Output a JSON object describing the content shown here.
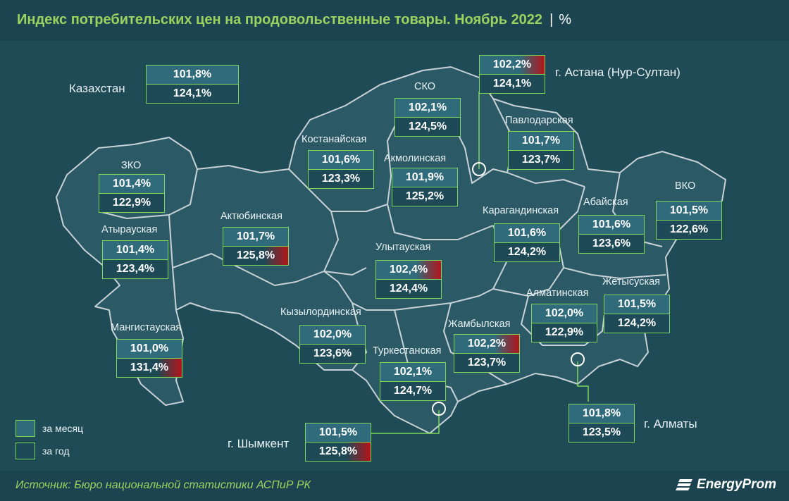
{
  "title": "Индекс потребительских цен на продовольственные товары. Ноябрь 2022",
  "unit": "%",
  "colors": {
    "border": "#7fd75a",
    "title": "#9cd35f",
    "highlight": "#b3141a",
    "background": "#1f4b57"
  },
  "regions": {
    "kz": {
      "name": "Казахстан",
      "month": "101,8%",
      "year": "124,1%"
    },
    "astana": {
      "name": "г. Астана (Нур-Султан)",
      "month": "102,2%",
      "year": "124,1%"
    },
    "sko": {
      "name": "СКО",
      "month": "102,1%",
      "year": "124,5%"
    },
    "pavlodar": {
      "name": "Павлодарская",
      "month": "101,7%",
      "year": "123,7%"
    },
    "kostanay": {
      "name": "Костанайская",
      "month": "101,6%",
      "year": "123,3%"
    },
    "akmola": {
      "name": "Акмолинская",
      "month": "101,9%",
      "year": "125,2%"
    },
    "zko": {
      "name": "ЗКО",
      "month": "101,4%",
      "year": "122,9%"
    },
    "vko": {
      "name": "ВКО",
      "month": "101,5%",
      "year": "122,6%"
    },
    "abay": {
      "name": "Абайская",
      "month": "101,6%",
      "year": "123,6%"
    },
    "karaganda": {
      "name": "Карагандинская",
      "month": "101,6%",
      "year": "124,2%"
    },
    "aktobe": {
      "name": "Актюбинская",
      "month": "101,7%",
      "year": "125,8%"
    },
    "atyrau": {
      "name": "Атырауская",
      "month": "101,4%",
      "year": "123,4%"
    },
    "ulytau": {
      "name": "Улытауская",
      "month": "102,4%",
      "year": "124,4%"
    },
    "almaty_reg": {
      "name": "Алматинская",
      "month": "102,0%",
      "year": "122,9%"
    },
    "zhetysu": {
      "name": "Жетысуская",
      "month": "101,5%",
      "year": "124,2%"
    },
    "kyzylorda": {
      "name": "Кызылординская",
      "month": "102,0%",
      "year": "123,6%"
    },
    "zhambyl": {
      "name": "Жамбылская",
      "month": "102,2%",
      "year": "123,7%"
    },
    "mangistau": {
      "name": "Мангистауская",
      "month": "101,0%",
      "year": "131,4%"
    },
    "turkestan": {
      "name": "Туркестанская",
      "month": "102,1%",
      "year": "124,7%"
    },
    "almaty_city": {
      "name": "г. Алматы",
      "month": "101,8%",
      "year": "123,5%"
    },
    "shymkent": {
      "name": "г. Шымкент",
      "month": "101,5%",
      "year": "125,8%"
    }
  },
  "highlights": [
    "astana.month",
    "aktobe.year",
    "ulytau.month",
    "zhambyl.month",
    "mangistau.year",
    "shymkent.year"
  ],
  "legend": {
    "month": "за месяц",
    "year": "за год"
  },
  "source": "Источник: Бюро национальной статистики АСПиР РК",
  "logo": "EnergyProm"
}
